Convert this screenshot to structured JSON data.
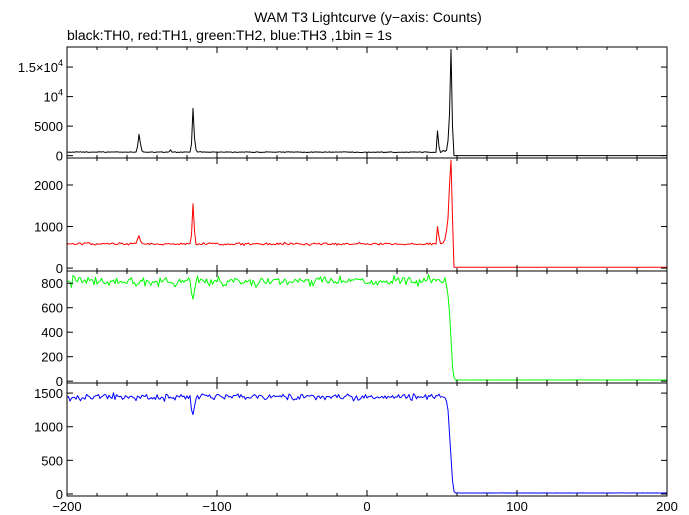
{
  "chart_data": {
    "type": "line",
    "title": "WAM T3 Lightcurve (y−axis: Counts)",
    "subtitle": "black:TH0, red:TH1, green:TH2, blue:TH3 ,1bin = 1s",
    "xlim": [
      -200,
      200
    ],
    "x_ticks": [
      -200,
      -100,
      0,
      100,
      200
    ],
    "x_tick_labels": [
      "−200",
      "−100",
      "0",
      "100",
      "200"
    ],
    "grid": false,
    "panels": [
      {
        "name": "TH0",
        "color": "#000000",
        "ylim": [
          -400,
          18400
        ],
        "y_ticks": [
          0,
          5000,
          10000,
          15000
        ],
        "y_tick_labels": [
          {
            "base": "0",
            "sup": ""
          },
          {
            "base": "5000",
            "sup": ""
          },
          {
            "base": "10",
            "sup": "4"
          },
          {
            "base": "1.5×10",
            "sup": "4"
          }
        ],
        "baseline": 600,
        "noise": 50,
        "pre_end": 52,
        "drop_end": 58,
        "post_level": 0,
        "post_noise": 0,
        "burst": [
          [
            50,
            700
          ],
          [
            51,
            900
          ],
          [
            52,
            700
          ],
          [
            53,
            900
          ],
          [
            54,
            2500
          ],
          [
            55,
            7000
          ],
          [
            56,
            18000
          ],
          [
            57,
            5000
          ],
          [
            58,
            0
          ]
        ],
        "spikes": [
          [
            -153,
            1500
          ],
          [
            -152,
            3600
          ],
          [
            -151,
            2000
          ],
          [
            -150,
            800
          ],
          [
            -117,
            2000
          ],
          [
            -116,
            8000
          ],
          [
            -115,
            3000
          ],
          [
            -114,
            1000
          ],
          [
            -131,
            1000
          ],
          [
            47,
            4200
          ],
          [
            48,
            1500
          ]
        ]
      },
      {
        "name": "TH1",
        "color": "#ff0000",
        "ylim": [
          -70,
          2650
        ],
        "y_ticks": [
          0,
          1000,
          2000
        ],
        "y_tick_labels": [
          {
            "base": "0",
            "sup": ""
          },
          {
            "base": "1000",
            "sup": ""
          },
          {
            "base": "2000",
            "sup": ""
          }
        ],
        "baseline": 580,
        "noise": 22,
        "pre_end": 52,
        "drop_end": 58,
        "post_level": 20,
        "post_noise": 3,
        "burst": [
          [
            51,
            620
          ],
          [
            52,
            700
          ],
          [
            53,
            900
          ],
          [
            54,
            1200
          ],
          [
            55,
            2000
          ],
          [
            56,
            2600
          ],
          [
            57,
            1200
          ],
          [
            58,
            20
          ]
        ],
        "spikes": [
          [
            -153,
            700
          ],
          [
            -152,
            780
          ],
          [
            -151,
            650
          ],
          [
            -117,
            800
          ],
          [
            -116,
            1550
          ],
          [
            -115,
            900
          ],
          [
            47,
            1000
          ],
          [
            48,
            750
          ]
        ]
      },
      {
        "name": "TH2",
        "color": "#00ff00",
        "ylim": [
          -15,
          900
        ],
        "y_ticks": [
          0,
          200,
          400,
          600,
          800
        ],
        "y_tick_labels": [
          {
            "base": "0",
            "sup": ""
          },
          {
            "base": "200",
            "sup": ""
          },
          {
            "base": "400",
            "sup": ""
          },
          {
            "base": "600",
            "sup": ""
          },
          {
            "base": "800",
            "sup": ""
          }
        ],
        "baseline": 815,
        "noise": 28,
        "pre_end": 53,
        "drop_end": 59,
        "post_level": 10,
        "post_noise": 2,
        "burst": [
          [
            53,
            780
          ],
          [
            54,
            700
          ],
          [
            55,
            560
          ],
          [
            56,
            350
          ],
          [
            57,
            120
          ],
          [
            58,
            30
          ],
          [
            59,
            10
          ]
        ],
        "spikes": [
          [
            -117,
            720
          ],
          [
            -116,
            670
          ],
          [
            -115,
            740
          ]
        ]
      },
      {
        "name": "TH3",
        "color": "#0000ff",
        "ylim": [
          -30,
          1650
        ],
        "y_ticks": [
          0,
          500,
          1000,
          1500
        ],
        "y_tick_labels": [
          {
            "base": "0",
            "sup": ""
          },
          {
            "base": "500",
            "sup": ""
          },
          {
            "base": "1000",
            "sup": ""
          },
          {
            "base": "1500",
            "sup": ""
          }
        ],
        "baseline": 1440,
        "noise": 35,
        "pre_end": 53,
        "drop_end": 59,
        "post_level": 15,
        "post_noise": 3,
        "burst": [
          [
            53,
            1380
          ],
          [
            54,
            1250
          ],
          [
            55,
            900
          ],
          [
            56,
            550
          ],
          [
            57,
            200
          ],
          [
            58,
            40
          ],
          [
            59,
            15
          ]
        ],
        "spikes": [
          [
            -117,
            1250
          ],
          [
            -116,
            1180
          ],
          [
            -115,
            1300
          ]
        ]
      }
    ]
  }
}
